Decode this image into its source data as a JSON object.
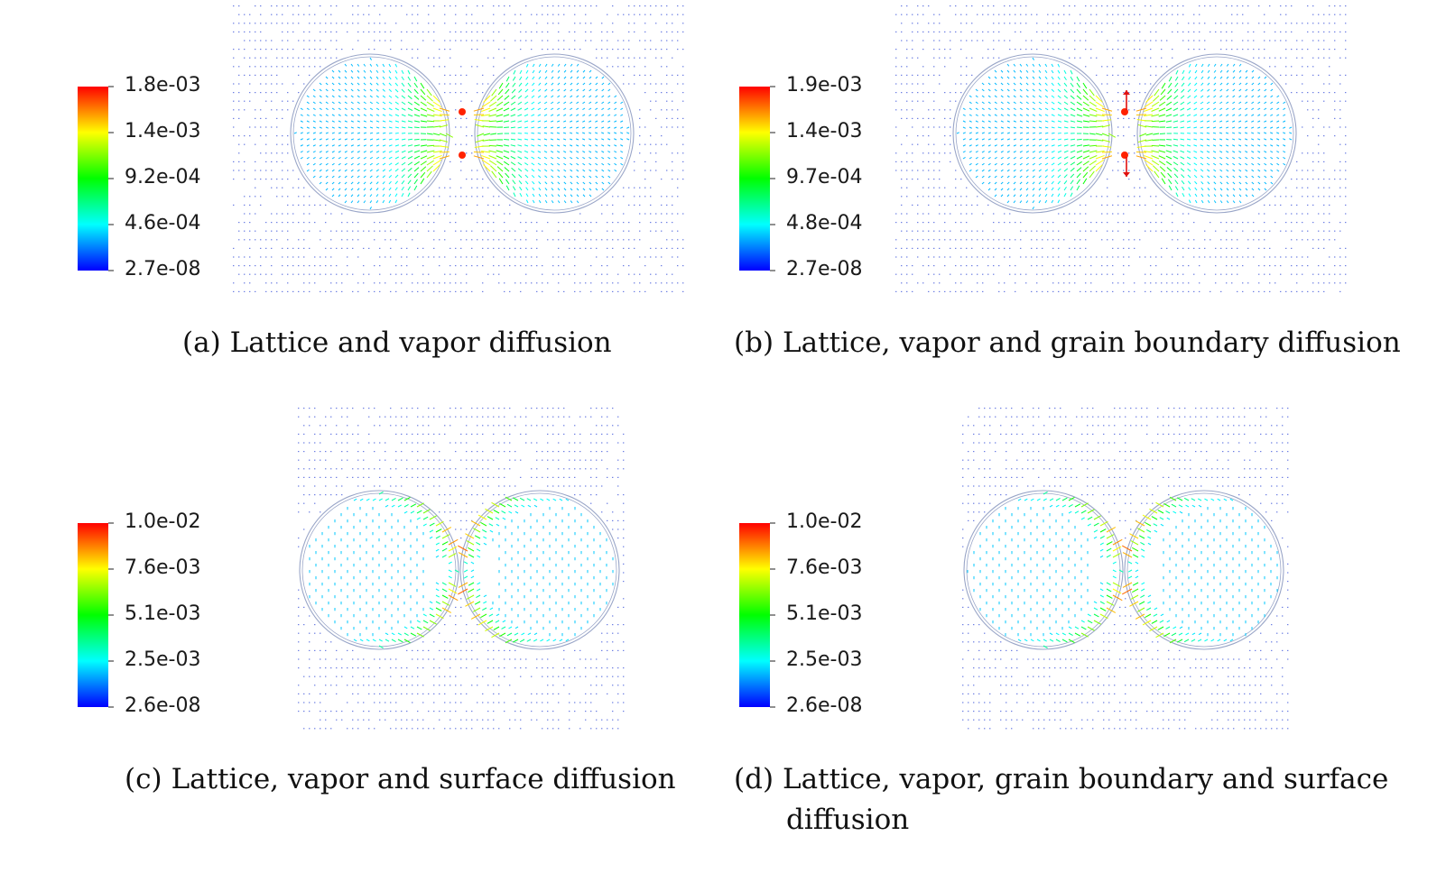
{
  "figure": {
    "panels": [
      {
        "id": "a",
        "caption_id": "(a)",
        "caption_text": "Lattice and vapor diffusion",
        "colorbar_ticks": [
          "1.8e-03",
          "1.4e-03",
          "9.2e-04",
          "4.6e-04",
          "2.7e-08"
        ],
        "flow_pattern": "lattice-vapor"
      },
      {
        "id": "b",
        "caption_id": "(b)",
        "caption_text": "Lattice, vapor and grain boundary diffusion",
        "colorbar_ticks": [
          "1.9e-03",
          "1.4e-03",
          "9.7e-04",
          "4.8e-04",
          "2.7e-08"
        ],
        "flow_pattern": "lattice-vapor-gb"
      },
      {
        "id": "c",
        "caption_id": "(c)",
        "caption_text": "Lattice, vapor and surface diffusion",
        "colorbar_ticks": [
          "1.0e-02",
          "7.6e-03",
          "5.1e-03",
          "2.5e-03",
          "2.6e-08"
        ],
        "flow_pattern": "surface"
      },
      {
        "id": "d",
        "caption_id": "(d)",
        "caption_text": "Lattice, vapor, grain boundary and surface",
        "caption_text_line2": "diffusion",
        "colorbar_ticks": [
          "1.0e-02",
          "7.6e-03",
          "5.1e-03",
          "2.5e-03",
          "2.6e-08"
        ],
        "flow_pattern": "surface-gb"
      }
    ],
    "colormap": [
      "#0000ff",
      "#00ffff",
      "#00ff00",
      "#ffff00",
      "#ff0000"
    ],
    "outline_color": "#9aa6c8"
  }
}
